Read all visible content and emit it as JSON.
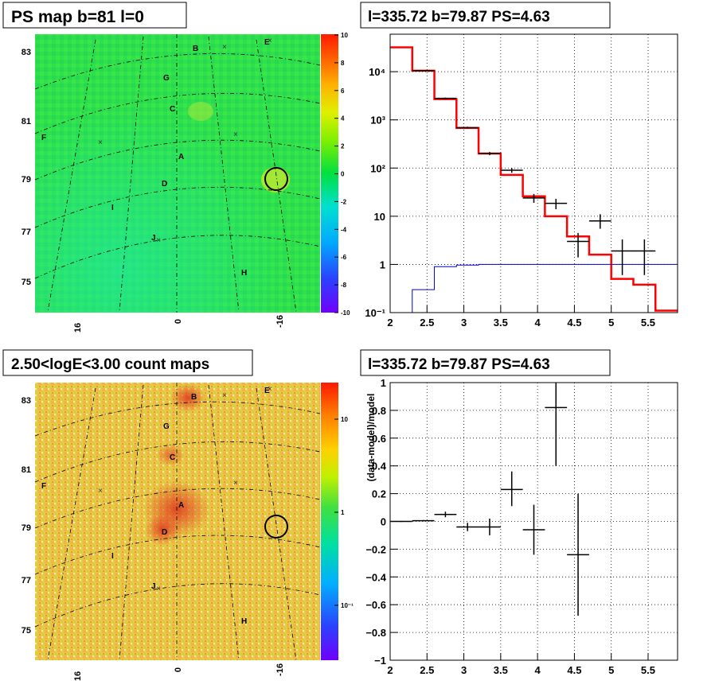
{
  "panels": {
    "ps_map": {
      "title": "PS map b=81 l=0",
      "colorbar_ticks": [
        "10",
        "8",
        "6",
        "4",
        "2",
        "0",
        "-2",
        "-4",
        "-6",
        "-8",
        "-10"
      ],
      "y_ticks": [
        "83",
        "81",
        "79",
        "77",
        "75"
      ],
      "x_ticks": [
        "16",
        "0",
        "-16"
      ],
      "labels": [
        "B",
        "E",
        "G",
        "C",
        "F",
        "A",
        "D",
        "I",
        "J",
        "H"
      ],
      "colors": {
        "background": "#2fe04a",
        "high": "#ff2a00",
        "low": "#6a00ff"
      }
    },
    "count_map": {
      "title": "2.50<logE<3.00 count maps",
      "colorbar_ticks": [
        "10",
        "1",
        "10⁻¹"
      ],
      "y_ticks": [
        "83",
        "81",
        "79",
        "77",
        "75"
      ],
      "x_ticks": [
        "16",
        "0",
        "-16"
      ],
      "labels": [
        "B",
        "E",
        "G",
        "C",
        "F",
        "A",
        "D",
        "I",
        "J",
        "H"
      ],
      "colors": {
        "background": "#e8c84a",
        "high": "#e8402a"
      }
    }
  },
  "chart_data": [
    {
      "type": "histogram",
      "title": "l=335.72 b=79.87 PS=4.63",
      "xlabel": "",
      "ylabel": "",
      "yscale": "log",
      "xlim": [
        2.0,
        5.9
      ],
      "ylim": [
        0.1,
        60000
      ],
      "x_ticks": [
        "2",
        "2.5",
        "3",
        "3.5",
        "4",
        "4.5",
        "5",
        "5.5"
      ],
      "y_ticks": [
        "10⁻¹",
        "1",
        "10",
        "10²",
        "10³",
        "10⁴"
      ],
      "series": [
        {
          "style": "red-step",
          "edges": [
            2.0,
            2.3,
            2.6,
            2.9,
            3.2,
            3.5,
            3.8,
            4.1,
            4.4,
            4.7,
            5.0,
            5.3,
            5.6,
            5.9
          ],
          "values": [
            32000,
            10500,
            2700,
            680,
            200,
            72,
            26,
            10,
            3.8,
            1.6,
            0.5,
            0.38,
            0.11
          ]
        },
        {
          "style": "blue-step",
          "edges": [
            2.3,
            2.6,
            2.9,
            3.2,
            3.5,
            5.9
          ],
          "values": [
            0.3,
            0.9,
            0.97,
            1.0,
            1.0
          ]
        },
        {
          "style": "data-points",
          "points": [
            {
              "x": 2.45,
              "y": 10500,
              "xerr": 0.15,
              "ylo": 10300,
              "yhi": 10700
            },
            {
              "x": 2.75,
              "y": 2800,
              "xerr": 0.15,
              "ylo": 2700,
              "yhi": 2900
            },
            {
              "x": 3.05,
              "y": 690,
              "xerr": 0.15,
              "ylo": 660,
              "yhi": 720
            },
            {
              "x": 3.35,
              "y": 200,
              "xerr": 0.15,
              "ylo": 185,
              "yhi": 215
            },
            {
              "x": 3.65,
              "y": 90,
              "xerr": 0.15,
              "ylo": 80,
              "yhi": 100
            },
            {
              "x": 3.95,
              "y": 24,
              "xerr": 0.15,
              "ylo": 19,
              "yhi": 29
            },
            {
              "x": 4.25,
              "y": 18.5,
              "xerr": 0.15,
              "ylo": 14,
              "yhi": 23
            },
            {
              "x": 4.55,
              "y": 3.0,
              "xerr": 0.15,
              "ylo": 1.4,
              "yhi": 4.5
            },
            {
              "x": 4.85,
              "y": 8.0,
              "xerr": 0.15,
              "ylo": 5.5,
              "yhi": 11
            },
            {
              "x": 5.15,
              "y": 1.9,
              "xerr": 0.15,
              "ylo": 0.6,
              "yhi": 3.3
            },
            {
              "x": 5.45,
              "y": 1.9,
              "xerr": 0.15,
              "ylo": 0.6,
              "yhi": 3.3
            }
          ]
        }
      ]
    },
    {
      "type": "scatter",
      "title": "l=335.72 b=79.87 PS=4.63",
      "xlabel": "",
      "ylabel": "(data-model)/model",
      "xlim": [
        2.0,
        5.9
      ],
      "ylim": [
        -1,
        1
      ],
      "x_ticks": [
        "2",
        "2.5",
        "3",
        "3.5",
        "4",
        "4.5",
        "5",
        "5.5"
      ],
      "y_ticks": [
        "1",
        "0.8",
        "0.6",
        "0.4",
        "0.2",
        "0",
        "−0.2",
        "−0.4",
        "−0.6",
        "−0.8",
        "−1"
      ],
      "series": [
        {
          "style": "data-points",
          "points": [
            {
              "x": 2.15,
              "y": 0.0,
              "xerr": 0.15,
              "ylo": -0.004,
              "yhi": 0.004
            },
            {
              "x": 2.45,
              "y": 0.005,
              "xerr": 0.15,
              "ylo": 0.0,
              "yhi": 0.01
            },
            {
              "x": 2.75,
              "y": 0.05,
              "xerr": 0.15,
              "ylo": 0.03,
              "yhi": 0.07
            },
            {
              "x": 3.05,
              "y": -0.04,
              "xerr": 0.15,
              "ylo": -0.07,
              "yhi": -0.01
            },
            {
              "x": 3.35,
              "y": -0.04,
              "xerr": 0.15,
              "ylo": -0.1,
              "yhi": 0.02
            },
            {
              "x": 3.65,
              "y": 0.23,
              "xerr": 0.15,
              "ylo": 0.11,
              "yhi": 0.36
            },
            {
              "x": 3.95,
              "y": -0.06,
              "xerr": 0.15,
              "ylo": -0.24,
              "yhi": 0.12
            },
            {
              "x": 4.25,
              "y": 0.82,
              "xerr": 0.15,
              "ylo": 0.4,
              "yhi": 1.0
            },
            {
              "x": 4.55,
              "y": -0.24,
              "xerr": 0.15,
              "ylo": -0.68,
              "yhi": 0.2
            }
          ]
        }
      ]
    }
  ]
}
